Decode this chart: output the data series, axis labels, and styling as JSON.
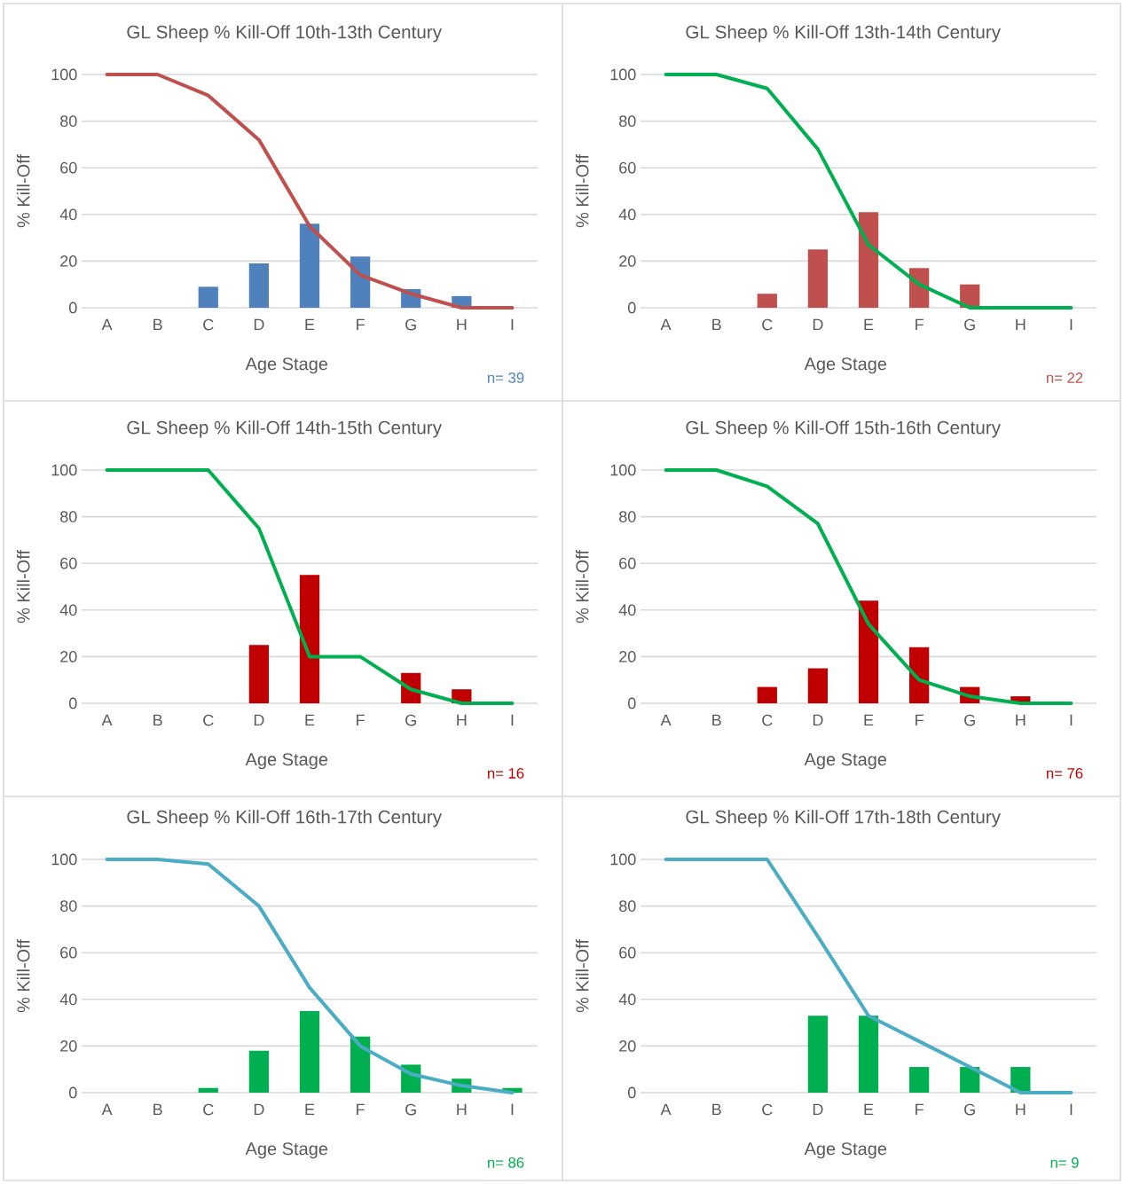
{
  "chart_data": [
    {
      "type": "bar",
      "title": "GL Sheep % Kill-Off 10th-13th Century",
      "xlabel": "Age Stage",
      "ylabel": "% Kill-Off",
      "categories": [
        "A",
        "B",
        "C",
        "D",
        "E",
        "F",
        "G",
        "H",
        "I"
      ],
      "ylim": [
        0,
        100
      ],
      "yticks": [
        0,
        20,
        40,
        60,
        80,
        100
      ],
      "grid": "y",
      "annotations": [
        "n= 39"
      ],
      "series": [
        {
          "color": "#4f81bd",
          "values": [
            0,
            0,
            9,
            19,
            36,
            22,
            8,
            5,
            0
          ]
        },
        {
          "type": "line",
          "color": "#c0504d",
          "values": [
            100,
            100,
            91,
            72,
            35,
            14,
            6,
            0,
            0
          ]
        }
      ]
    },
    {
      "type": "bar",
      "title": "GL Sheep % Kill-Off 13th-14th Century",
      "xlabel": "Age Stage",
      "ylabel": "% Kill-Off",
      "categories": [
        "A",
        "B",
        "C",
        "D",
        "E",
        "F",
        "G",
        "H",
        "I"
      ],
      "ylim": [
        0,
        100
      ],
      "yticks": [
        0,
        20,
        40,
        60,
        80,
        100
      ],
      "grid": "y",
      "annotations": [
        "n= 22"
      ],
      "series": [
        {
          "color": "#c0504d",
          "values": [
            0,
            0,
            6,
            25,
            41,
            17,
            10,
            0,
            0
          ]
        },
        {
          "type": "line",
          "color": "#00b050",
          "values": [
            100,
            100,
            94,
            68,
            27,
            10,
            0,
            0,
            0
          ]
        }
      ]
    },
    {
      "type": "bar",
      "title": "GL Sheep % Kill-Off 14th-15th Century",
      "xlabel": "Age Stage",
      "ylabel": "% Kill-Off",
      "categories": [
        "A",
        "B",
        "C",
        "D",
        "E",
        "F",
        "G",
        "H",
        "I"
      ],
      "ylim": [
        0,
        100
      ],
      "yticks": [
        0,
        20,
        40,
        60,
        80,
        100
      ],
      "grid": "y",
      "annotations": [
        "n= 16"
      ],
      "series": [
        {
          "color": "#c00000",
          "values": [
            0,
            0,
            0,
            25,
            55,
            0,
            13,
            6,
            0
          ]
        },
        {
          "type": "line",
          "color": "#00b050",
          "values": [
            100,
            100,
            100,
            75,
            20,
            20,
            6,
            0,
            0
          ]
        }
      ]
    },
    {
      "type": "bar",
      "title": "GL Sheep % Kill-Off 15th-16th Century",
      "xlabel": "Age Stage",
      "ylabel": "% Kill-Off",
      "categories": [
        "A",
        "B",
        "C",
        "D",
        "E",
        "F",
        "G",
        "H",
        "I"
      ],
      "ylim": [
        0,
        100
      ],
      "yticks": [
        0,
        20,
        40,
        60,
        80,
        100
      ],
      "grid": "y",
      "annotations": [
        "n= 76"
      ],
      "series": [
        {
          "color": "#c00000",
          "values": [
            0,
            0,
            7,
            15,
            44,
            24,
            7,
            3,
            0
          ]
        },
        {
          "type": "line",
          "color": "#00b050",
          "values": [
            100,
            100,
            93,
            77,
            34,
            10,
            3,
            0,
            0
          ]
        }
      ]
    },
    {
      "type": "bar",
      "title": "GL Sheep % Kill-Off 16th-17th Century",
      "xlabel": "Age Stage",
      "ylabel": "% Kill-Off",
      "categories": [
        "A",
        "B",
        "C",
        "D",
        "E",
        "F",
        "G",
        "H",
        "I"
      ],
      "ylim": [
        0,
        100
      ],
      "yticks": [
        0,
        20,
        40,
        60,
        80,
        100
      ],
      "grid": "y",
      "annotations": [
        "n= 86"
      ],
      "series": [
        {
          "color": "#00b050",
          "values": [
            0,
            0,
            2,
            18,
            35,
            24,
            12,
            6,
            2
          ]
        },
        {
          "type": "line",
          "color": "#4bacc6",
          "values": [
            100,
            100,
            98,
            80,
            45,
            20,
            8,
            3,
            0
          ]
        }
      ]
    },
    {
      "type": "bar",
      "title": "GL Sheep % Kill-Off 17th-18th Century",
      "xlabel": "Age Stage",
      "ylabel": "% Kill-Off",
      "categories": [
        "A",
        "B",
        "C",
        "D",
        "E",
        "F",
        "G",
        "H",
        "I"
      ],
      "ylim": [
        0,
        100
      ],
      "yticks": [
        0,
        20,
        40,
        60,
        80,
        100
      ],
      "grid": "y",
      "annotations": [
        "n= 9"
      ],
      "series": [
        {
          "color": "#00b050",
          "values": [
            0,
            0,
            0,
            33,
            33,
            11,
            11,
            11,
            0
          ]
        },
        {
          "type": "line",
          "color": "#4bacc6",
          "values": [
            100,
            100,
            100,
            67,
            33,
            22,
            11,
            0,
            0
          ]
        }
      ]
    }
  ]
}
